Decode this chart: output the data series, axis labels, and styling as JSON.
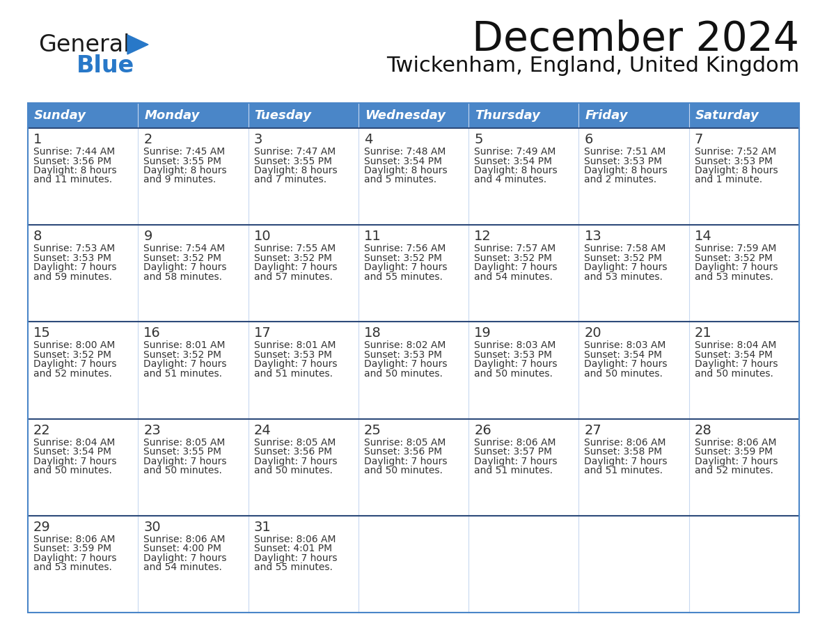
{
  "title": "December 2024",
  "subtitle": "Twickenham, England, United Kingdom",
  "header_color": "#4a86c8",
  "header_text_color": "#ffffff",
  "row_line_color": "#2d4a7a",
  "col_line_color": "#c8d8f0",
  "day_names": [
    "Sunday",
    "Monday",
    "Tuesday",
    "Wednesday",
    "Thursday",
    "Friday",
    "Saturday"
  ],
  "weeks": [
    [
      {
        "day": 1,
        "sunrise": "7:44 AM",
        "sunset": "3:56 PM",
        "daylight_line1": "Daylight: 8 hours",
        "daylight_line2": "and 11 minutes."
      },
      {
        "day": 2,
        "sunrise": "7:45 AM",
        "sunset": "3:55 PM",
        "daylight_line1": "Daylight: 8 hours",
        "daylight_line2": "and 9 minutes."
      },
      {
        "day": 3,
        "sunrise": "7:47 AM",
        "sunset": "3:55 PM",
        "daylight_line1": "Daylight: 8 hours",
        "daylight_line2": "and 7 minutes."
      },
      {
        "day": 4,
        "sunrise": "7:48 AM",
        "sunset": "3:54 PM",
        "daylight_line1": "Daylight: 8 hours",
        "daylight_line2": "and 5 minutes."
      },
      {
        "day": 5,
        "sunrise": "7:49 AM",
        "sunset": "3:54 PM",
        "daylight_line1": "Daylight: 8 hours",
        "daylight_line2": "and 4 minutes."
      },
      {
        "day": 6,
        "sunrise": "7:51 AM",
        "sunset": "3:53 PM",
        "daylight_line1": "Daylight: 8 hours",
        "daylight_line2": "and 2 minutes."
      },
      {
        "day": 7,
        "sunrise": "7:52 AM",
        "sunset": "3:53 PM",
        "daylight_line1": "Daylight: 8 hours",
        "daylight_line2": "and 1 minute."
      }
    ],
    [
      {
        "day": 8,
        "sunrise": "7:53 AM",
        "sunset": "3:53 PM",
        "daylight_line1": "Daylight: 7 hours",
        "daylight_line2": "and 59 minutes."
      },
      {
        "day": 9,
        "sunrise": "7:54 AM",
        "sunset": "3:52 PM",
        "daylight_line1": "Daylight: 7 hours",
        "daylight_line2": "and 58 minutes."
      },
      {
        "day": 10,
        "sunrise": "7:55 AM",
        "sunset": "3:52 PM",
        "daylight_line1": "Daylight: 7 hours",
        "daylight_line2": "and 57 minutes."
      },
      {
        "day": 11,
        "sunrise": "7:56 AM",
        "sunset": "3:52 PM",
        "daylight_line1": "Daylight: 7 hours",
        "daylight_line2": "and 55 minutes."
      },
      {
        "day": 12,
        "sunrise": "7:57 AM",
        "sunset": "3:52 PM",
        "daylight_line1": "Daylight: 7 hours",
        "daylight_line2": "and 54 minutes."
      },
      {
        "day": 13,
        "sunrise": "7:58 AM",
        "sunset": "3:52 PM",
        "daylight_line1": "Daylight: 7 hours",
        "daylight_line2": "and 53 minutes."
      },
      {
        "day": 14,
        "sunrise": "7:59 AM",
        "sunset": "3:52 PM",
        "daylight_line1": "Daylight: 7 hours",
        "daylight_line2": "and 53 minutes."
      }
    ],
    [
      {
        "day": 15,
        "sunrise": "8:00 AM",
        "sunset": "3:52 PM",
        "daylight_line1": "Daylight: 7 hours",
        "daylight_line2": "and 52 minutes."
      },
      {
        "day": 16,
        "sunrise": "8:01 AM",
        "sunset": "3:52 PM",
        "daylight_line1": "Daylight: 7 hours",
        "daylight_line2": "and 51 minutes."
      },
      {
        "day": 17,
        "sunrise": "8:01 AM",
        "sunset": "3:53 PM",
        "daylight_line1": "Daylight: 7 hours",
        "daylight_line2": "and 51 minutes."
      },
      {
        "day": 18,
        "sunrise": "8:02 AM",
        "sunset": "3:53 PM",
        "daylight_line1": "Daylight: 7 hours",
        "daylight_line2": "and 50 minutes."
      },
      {
        "day": 19,
        "sunrise": "8:03 AM",
        "sunset": "3:53 PM",
        "daylight_line1": "Daylight: 7 hours",
        "daylight_line2": "and 50 minutes."
      },
      {
        "day": 20,
        "sunrise": "8:03 AM",
        "sunset": "3:54 PM",
        "daylight_line1": "Daylight: 7 hours",
        "daylight_line2": "and 50 minutes."
      },
      {
        "day": 21,
        "sunrise": "8:04 AM",
        "sunset": "3:54 PM",
        "daylight_line1": "Daylight: 7 hours",
        "daylight_line2": "and 50 minutes."
      }
    ],
    [
      {
        "day": 22,
        "sunrise": "8:04 AM",
        "sunset": "3:54 PM",
        "daylight_line1": "Daylight: 7 hours",
        "daylight_line2": "and 50 minutes."
      },
      {
        "day": 23,
        "sunrise": "8:05 AM",
        "sunset": "3:55 PM",
        "daylight_line1": "Daylight: 7 hours",
        "daylight_line2": "and 50 minutes."
      },
      {
        "day": 24,
        "sunrise": "8:05 AM",
        "sunset": "3:56 PM",
        "daylight_line1": "Daylight: 7 hours",
        "daylight_line2": "and 50 minutes."
      },
      {
        "day": 25,
        "sunrise": "8:05 AM",
        "sunset": "3:56 PM",
        "daylight_line1": "Daylight: 7 hours",
        "daylight_line2": "and 50 minutes."
      },
      {
        "day": 26,
        "sunrise": "8:06 AM",
        "sunset": "3:57 PM",
        "daylight_line1": "Daylight: 7 hours",
        "daylight_line2": "and 51 minutes."
      },
      {
        "day": 27,
        "sunrise": "8:06 AM",
        "sunset": "3:58 PM",
        "daylight_line1": "Daylight: 7 hours",
        "daylight_line2": "and 51 minutes."
      },
      {
        "day": 28,
        "sunrise": "8:06 AM",
        "sunset": "3:59 PM",
        "daylight_line1": "Daylight: 7 hours",
        "daylight_line2": "and 52 minutes."
      }
    ],
    [
      {
        "day": 29,
        "sunrise": "8:06 AM",
        "sunset": "3:59 PM",
        "daylight_line1": "Daylight: 7 hours",
        "daylight_line2": "and 53 minutes."
      },
      {
        "day": 30,
        "sunrise": "8:06 AM",
        "sunset": "4:00 PM",
        "daylight_line1": "Daylight: 7 hours",
        "daylight_line2": "and 54 minutes."
      },
      {
        "day": 31,
        "sunrise": "8:06 AM",
        "sunset": "4:01 PM",
        "daylight_line1": "Daylight: 7 hours",
        "daylight_line2": "and 55 minutes."
      },
      null,
      null,
      null,
      null
    ]
  ],
  "logo_text_general": "General",
  "logo_text_blue": "Blue",
  "logo_color_general": "#1a1a1a",
  "logo_color_blue": "#2878c8",
  "logo_triangle_color": "#2878c8",
  "bg_color": "#ffffff",
  "text_color": "#333333",
  "border_color": "#4a86c8",
  "title_fontsize": 42,
  "subtitle_fontsize": 22,
  "header_fontsize": 13,
  "day_num_fontsize": 14,
  "cell_text_fontsize": 10
}
